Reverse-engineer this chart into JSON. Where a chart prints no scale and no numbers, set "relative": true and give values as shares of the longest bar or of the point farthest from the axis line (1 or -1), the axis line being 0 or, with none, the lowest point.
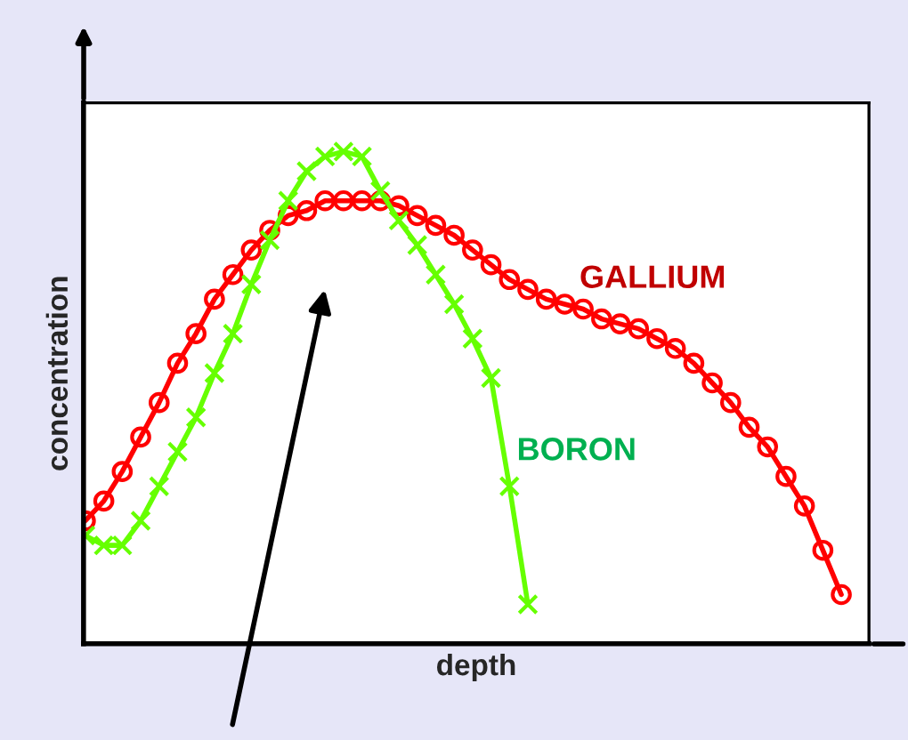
{
  "chart_data": {
    "type": "line",
    "relative": true,
    "xlabel": "depth",
    "ylabel": "concentration",
    "tick_labels": false,
    "categories": [
      null,
      null,
      null,
      null,
      null,
      null,
      null,
      null,
      null,
      null,
      null,
      null,
      null,
      null,
      null,
      null,
      null,
      null,
      null,
      null,
      null,
      null,
      null,
      null,
      null,
      null,
      null,
      null,
      null,
      null,
      null,
      null,
      null,
      null,
      null,
      null,
      null,
      null,
      null,
      null,
      null,
      null,
      null
    ],
    "series": [
      {
        "name": "GALLIUM",
        "color": "#ff0000",
        "marker": "circle",
        "values": [
          0.25,
          0.29,
          0.35,
          0.42,
          0.49,
          0.57,
          0.63,
          0.7,
          0.75,
          0.8,
          0.84,
          0.87,
          0.88,
          0.9,
          0.9,
          0.9,
          0.9,
          0.89,
          0.87,
          0.85,
          0.83,
          0.8,
          0.77,
          0.74,
          0.72,
          0.7,
          0.69,
          0.68,
          0.66,
          0.65,
          0.64,
          0.62,
          0.6,
          0.57,
          0.53,
          0.49,
          0.44,
          0.4,
          0.34,
          0.28,
          0.19,
          0.1,
          null
        ]
      },
      {
        "name": "BORON",
        "color": "#66ff00",
        "marker": "cross",
        "values": [
          0.22,
          0.2,
          0.2,
          0.25,
          0.32,
          0.39,
          0.46,
          0.55,
          0.63,
          0.73,
          0.82,
          0.9,
          0.96,
          0.99,
          1.0,
          0.99,
          0.92,
          0.86,
          0.81,
          0.75,
          0.69,
          0.62,
          0.54,
          0.32,
          0.08,
          null,
          null,
          null,
          null,
          null,
          null,
          null,
          null,
          null,
          null,
          null,
          null,
          null,
          null,
          null,
          null,
          null,
          null
        ]
      }
    ]
  }
}
